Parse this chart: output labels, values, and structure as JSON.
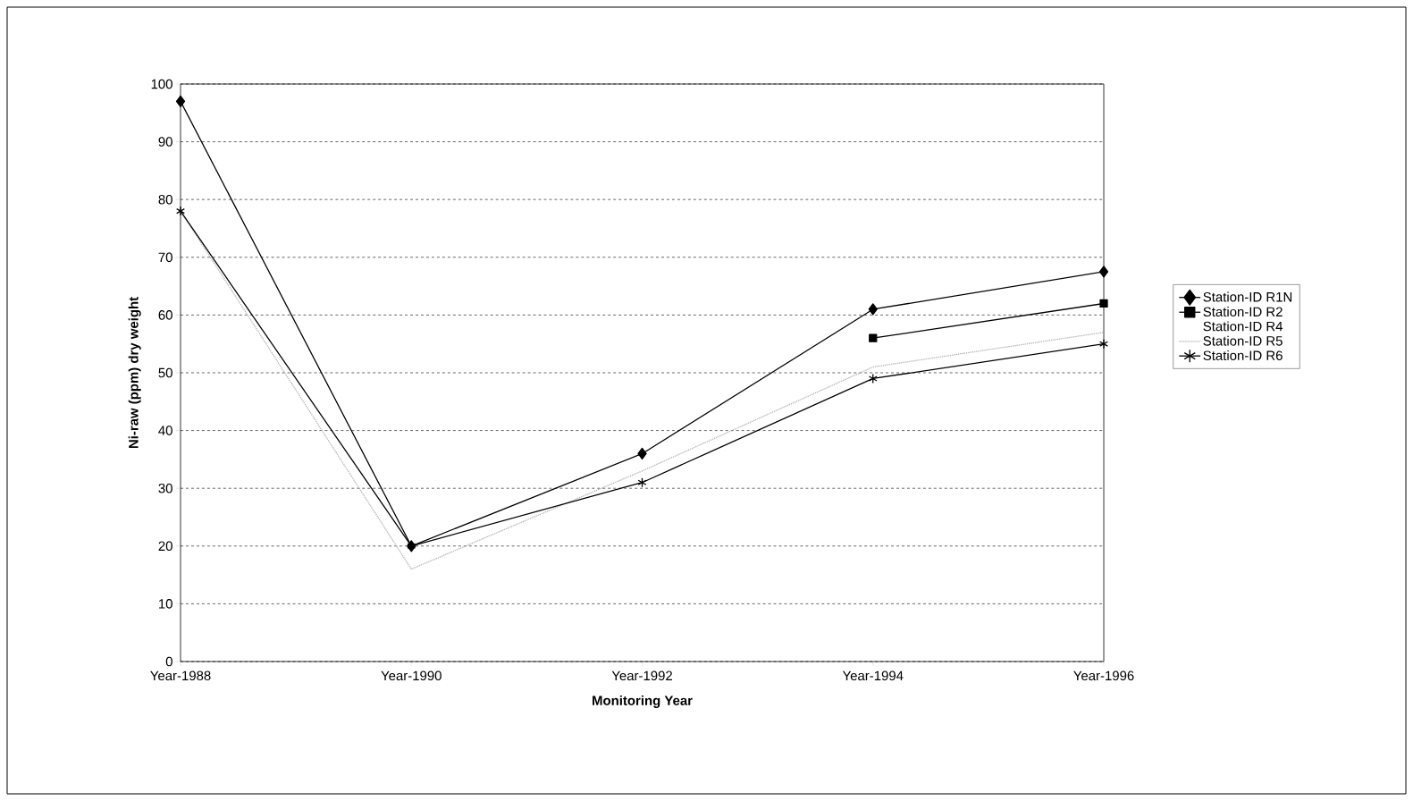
{
  "chart_data": {
    "type": "line",
    "xlabel": "Monitoring Year",
    "ylabel": "Ni-raw (ppm) dry weight",
    "categories": [
      "Year-1988",
      "Year-1990",
      "Year-1992",
      "Year-1994",
      "Year-1996"
    ],
    "series": [
      {
        "name": "Station-ID R1N",
        "color": "#000000",
        "marker": "diamond",
        "values": [
          97,
          20,
          36,
          61,
          67.5
        ]
      },
      {
        "name": "Station-ID R2",
        "color": "#000000",
        "marker": "square",
        "values": [
          null,
          null,
          null,
          56,
          62
        ]
      },
      {
        "name": "Station-ID R4",
        "marker": "none",
        "values": [
          null,
          null,
          null,
          null,
          null
        ]
      },
      {
        "name": "Station-ID R5",
        "color": "#b0b0b0",
        "marker": "none",
        "line_style": "dotted",
        "values": [
          78,
          16,
          33,
          51,
          57
        ]
      },
      {
        "name": "Station-ID R6",
        "color": "#000000",
        "marker": "cross",
        "values": [
          78,
          20,
          31,
          49,
          55
        ]
      }
    ],
    "ylim": [
      0,
      100
    ],
    "yticks": [
      0,
      10,
      20,
      30,
      40,
      50,
      60,
      70,
      80,
      90,
      100
    ],
    "grid": "y",
    "legend": "right"
  }
}
